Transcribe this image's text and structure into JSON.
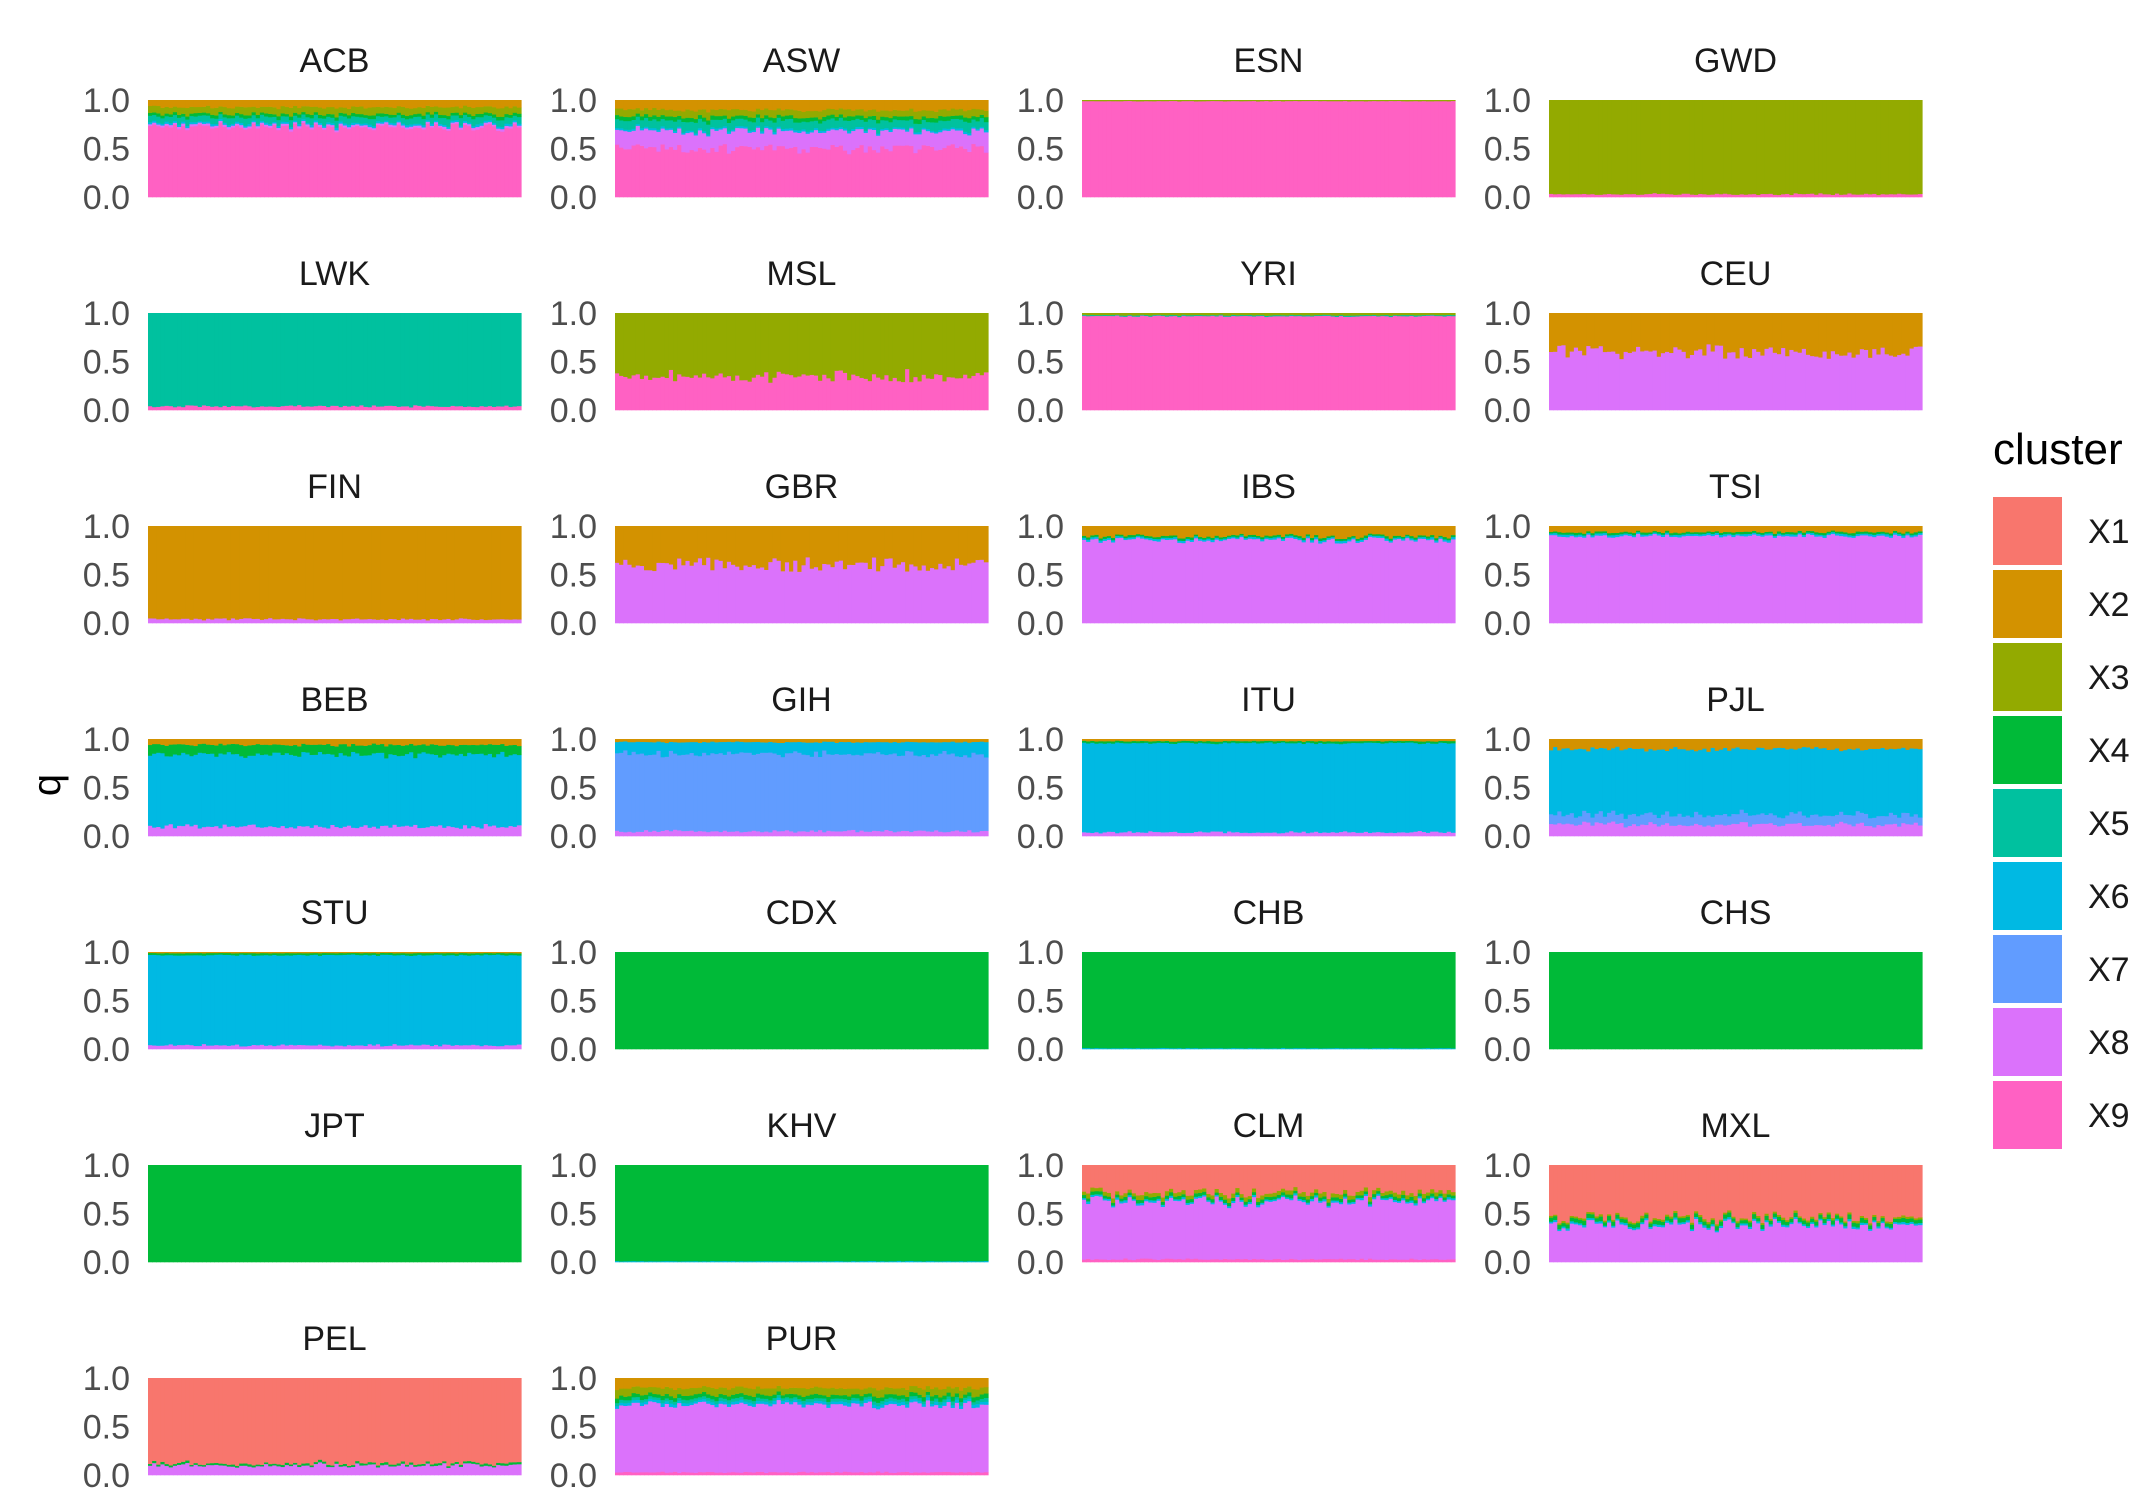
{
  "chart_data": {
    "type": "bar",
    "subtype": "stacked admixture (structure) plot, faceted",
    "ylabel": "q",
    "ylim": [
      0,
      1
    ],
    "y_ticks": [
      "0.0",
      "0.5",
      "1.0"
    ],
    "grid": false,
    "legend": {
      "title": "cluster",
      "placement": "right",
      "entries": [
        {
          "name": "X1",
          "color": "#F8766D"
        },
        {
          "name": "X2",
          "color": "#D39200"
        },
        {
          "name": "X3",
          "color": "#93AA00"
        },
        {
          "name": "X4",
          "color": "#00BA38"
        },
        {
          "name": "X5",
          "color": "#00C19F"
        },
        {
          "name": "X6",
          "color": "#00B9E3"
        },
        {
          "name": "X7",
          "color": "#619CFF"
        },
        {
          "name": "X8",
          "color": "#DB72FB"
        },
        {
          "name": "X9",
          "color": "#FF61C3"
        }
      ]
    },
    "facets": [
      {
        "name": "ACB",
        "mean_q": {
          "X9": 0.73,
          "X8": 0.02,
          "X6": 0.02,
          "X5": 0.06,
          "X4": 0.03,
          "X3": 0.07,
          "X2": 0.07
        }
      },
      {
        "name": "ASW",
        "mean_q": {
          "X9": 0.5,
          "X8": 0.18,
          "X6": 0.02,
          "X5": 0.09,
          "X4": 0.04,
          "X3": 0.07,
          "X2": 0.1
        }
      },
      {
        "name": "ESN",
        "mean_q": {
          "X9": 0.99,
          "X3": 0.01
        }
      },
      {
        "name": "GWD",
        "mean_q": {
          "X9": 0.03,
          "X3": 0.97
        }
      },
      {
        "name": "LWK",
        "mean_q": {
          "X9": 0.04,
          "X5": 0.96
        }
      },
      {
        "name": "MSL",
        "mean_q": {
          "X9": 0.35,
          "X3": 0.65
        }
      },
      {
        "name": "YRI",
        "mean_q": {
          "X9": 0.97,
          "X3": 0.02,
          "X5": 0.01
        }
      },
      {
        "name": "CEU",
        "mean_q": {
          "X8": 0.6,
          "X2": 0.4
        }
      },
      {
        "name": "FIN",
        "mean_q": {
          "X8": 0.04,
          "X2": 0.96
        }
      },
      {
        "name": "GBR",
        "mean_q": {
          "X8": 0.6,
          "X2": 0.4
        }
      },
      {
        "name": "IBS",
        "mean_q": {
          "X8": 0.86,
          "X6": 0.02,
          "X4": 0.02,
          "X2": 0.1
        }
      },
      {
        "name": "TSI",
        "mean_q": {
          "X8": 0.9,
          "X6": 0.02,
          "X4": 0.02,
          "X2": 0.06
        }
      },
      {
        "name": "BEB",
        "mean_q": {
          "X8": 0.1,
          "X6": 0.74,
          "X4": 0.1,
          "X2": 0.06
        }
      },
      {
        "name": "GIH",
        "mean_q": {
          "X8": 0.05,
          "X7": 0.8,
          "X6": 0.12,
          "X2": 0.03
        }
      },
      {
        "name": "ITU",
        "mean_q": {
          "X8": 0.04,
          "X6": 0.92,
          "X4": 0.02,
          "X2": 0.02
        }
      },
      {
        "name": "PJL",
        "mean_q": {
          "X8": 0.12,
          "X7": 0.1,
          "X6": 0.68,
          "X2": 0.1
        }
      },
      {
        "name": "STU",
        "mean_q": {
          "X8": 0.04,
          "X6": 0.93,
          "X4": 0.02,
          "X2": 0.01
        }
      },
      {
        "name": "CDX",
        "mean_q": {
          "X4": 1.0
        }
      },
      {
        "name": "CHB",
        "mean_q": {
          "X4": 0.99,
          "X6": 0.01
        }
      },
      {
        "name": "CHS",
        "mean_q": {
          "X4": 1.0
        }
      },
      {
        "name": "JPT",
        "mean_q": {
          "X4": 1.0
        }
      },
      {
        "name": "KHV",
        "mean_q": {
          "X4": 0.99,
          "X6": 0.01
        }
      },
      {
        "name": "CLM",
        "mean_q": {
          "X9": 0.03,
          "X8": 0.6,
          "X6": 0.02,
          "X4": 0.03,
          "X3": 0.04,
          "X1": 0.28
        }
      },
      {
        "name": "MXL",
        "mean_q": {
          "X8": 0.38,
          "X6": 0.02,
          "X4": 0.04,
          "X3": 0.02,
          "X1": 0.54
        }
      },
      {
        "name": "PEL",
        "mean_q": {
          "X8": 0.1,
          "X4": 0.02,
          "X1": 0.88
        }
      },
      {
        "name": "PUR",
        "mean_q": {
          "X9": 0.03,
          "X8": 0.7,
          "X6": 0.03,
          "X5": 0.03,
          "X4": 0.04,
          "X3": 0.07,
          "X2": 0.1
        }
      }
    ]
  }
}
